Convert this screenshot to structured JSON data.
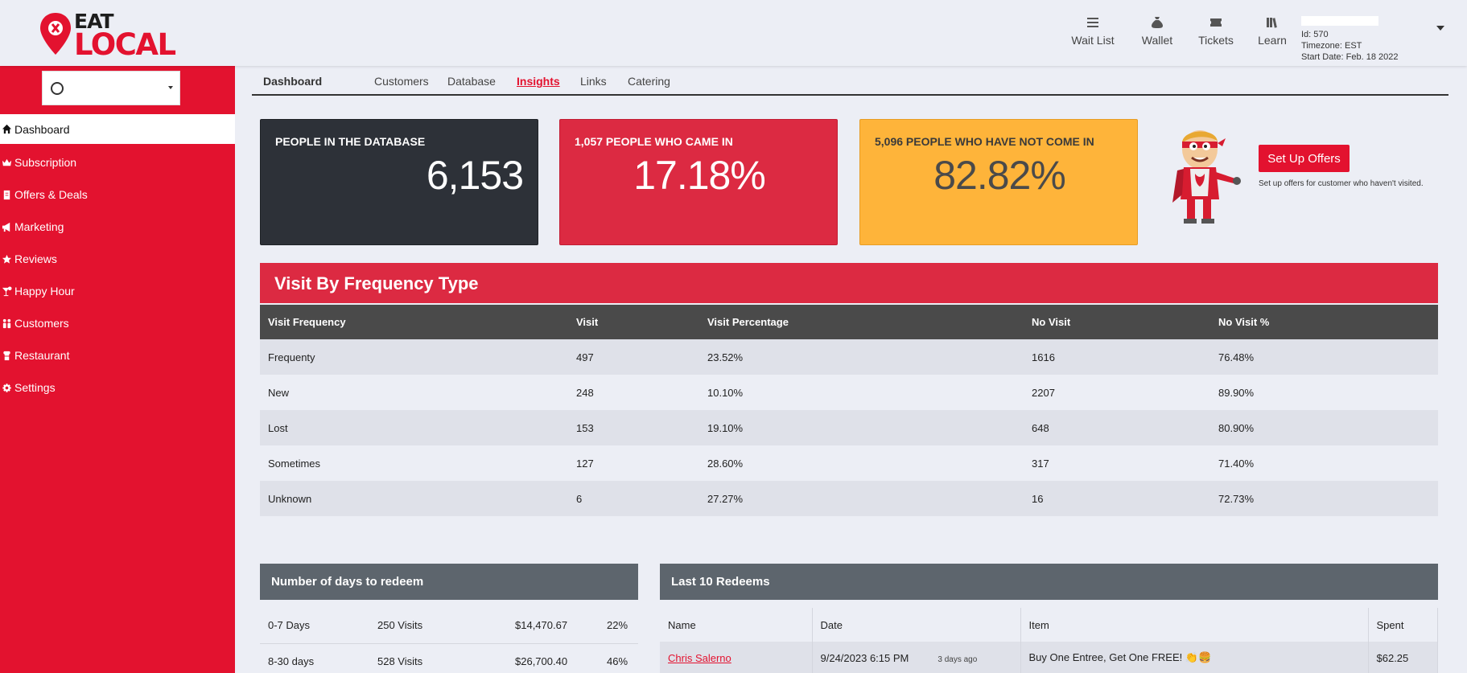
{
  "brand": {
    "line1": "EAT",
    "line2": "LOCAL",
    "accent": "#e3122f"
  },
  "topnav": [
    {
      "label": "Wait List",
      "icon": "list-icon"
    },
    {
      "label": "Wallet",
      "icon": "money-bag-icon"
    },
    {
      "label": "Tickets",
      "icon": "ticket-icon"
    },
    {
      "label": "Learn",
      "icon": "books-icon"
    }
  ],
  "account": {
    "id": "Id: 570",
    "timezone": "Timezone: EST",
    "start": "Start Date: Feb. 18 2022"
  },
  "sidebar": {
    "items": [
      {
        "label": "Dashboard",
        "icon": "home-icon"
      },
      {
        "label": "Subscription",
        "icon": "crown-icon"
      },
      {
        "label": "Offers & Deals",
        "icon": "coupon-icon"
      },
      {
        "label": "Marketing",
        "icon": "megaphone-icon"
      },
      {
        "label": "Reviews",
        "icon": "star-icon"
      },
      {
        "label": "Happy Hour",
        "icon": "cocktail-icon"
      },
      {
        "label": "Customers",
        "icon": "people-icon"
      },
      {
        "label": "Restaurant",
        "icon": "chef-icon"
      },
      {
        "label": "Settings",
        "icon": "gear-icon"
      }
    ]
  },
  "subnav": {
    "dashboard": "Dashboard",
    "tabs": [
      "Customers",
      "Database",
      "Insights",
      "Links",
      "Catering"
    ],
    "active": "Insights"
  },
  "stats": {
    "db": {
      "label": "PEOPLE IN THE DATABASE",
      "value": "6,153",
      "color": "#2d3138"
    },
    "came": {
      "label": "1,057 PEOPLE WHO CAME IN",
      "value": "17.18%",
      "color": "#dc2a42"
    },
    "notcame": {
      "label": "5,096 PEOPLE WHO HAVE NOT COME IN",
      "value": "82.82%",
      "color": "#feb43a"
    }
  },
  "offers": {
    "button": "Set Up Offers",
    "text": "Set up offers for customer who haven't visited."
  },
  "frequency": {
    "title": "Visit By Frequency Type",
    "headers": [
      "Visit Frequency",
      "Visit",
      "Visit Percentage",
      "No Visit",
      "No Visit %"
    ],
    "rows": [
      [
        "Frequenty",
        "497",
        "23.52%",
        "1616",
        "76.48%"
      ],
      [
        "New",
        "248",
        "10.10%",
        "2207",
        "89.90%"
      ],
      [
        "Lost",
        "153",
        "19.10%",
        "648",
        "80.90%"
      ],
      [
        "Sometimes",
        "127",
        "28.60%",
        "317",
        "71.40%"
      ],
      [
        "Unknown",
        "6",
        "27.27%",
        "16",
        "72.73%"
      ]
    ]
  },
  "days": {
    "title": "Number of days to redeem",
    "rows": [
      [
        "0-7 Days",
        "250 Visits",
        "$14,470.67",
        "22%"
      ],
      [
        "8-30 days",
        "528 Visits",
        "$26,700.40",
        "46%"
      ]
    ]
  },
  "redeems": {
    "title": "Last 10 Redeems",
    "headers": [
      "Name",
      "Date",
      "Item",
      "Spent"
    ],
    "rows": [
      {
        "name": "Chris Salerno",
        "date": "9/24/2023 6:15 PM",
        "ago": "3 days ago",
        "item": "Buy One Entree, Get One FREE! 👏🍔",
        "spent": "$62.25"
      }
    ]
  }
}
